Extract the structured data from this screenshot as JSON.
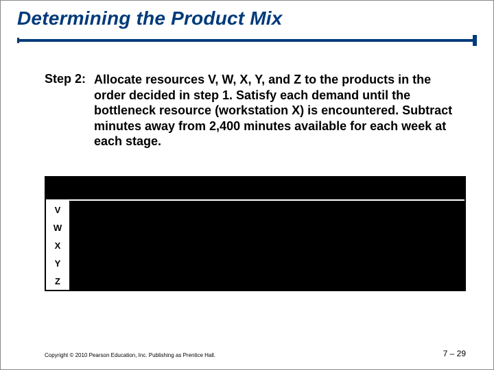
{
  "title": "Determining the Product Mix",
  "step": {
    "label": "Step 2:",
    "text": "Allocate resources V, W, X, Y, and Z to the products in the order decided in step 1. Satisfy each demand until the bottleneck resource (workstation X) is encountered. Subtract minutes away from 2,400 minutes available for each week at each stage."
  },
  "table": {
    "workstations": [
      "V",
      "W",
      "X",
      "Y",
      "Z"
    ],
    "header_bg": "#000000",
    "cell_bg": "#000000",
    "ws_col_bg": "#ffffff",
    "border_color": "#000000"
  },
  "colors": {
    "title": "#003a7a",
    "underline": "#003a7a",
    "body_text": "#000000"
  },
  "footer": {
    "copyright": "Copyright © 2010 Pearson Education, Inc. Publishing as Prentice Hall.",
    "pagenum": "7 – 29"
  }
}
